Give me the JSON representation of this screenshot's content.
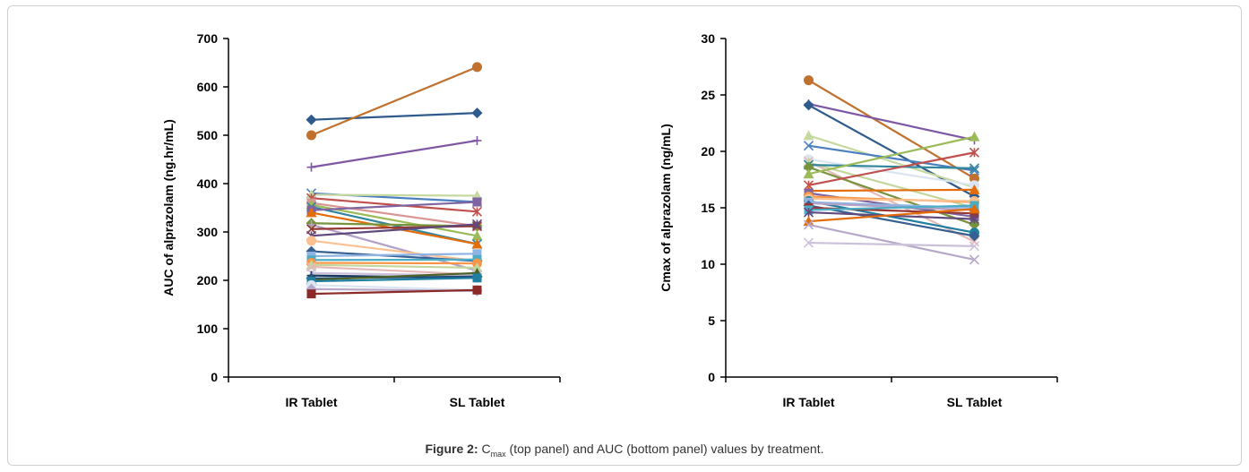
{
  "caption": {
    "label": "Figure 2:",
    "c_letter": "C",
    "c_sub": "max",
    "rest": " (top panel) and AUC (bottom panel) values by treatment."
  },
  "chart_data": [
    {
      "type": "line",
      "ylabel": "AUC  of alprazolam  (ng.hr/mL)",
      "categories": [
        "IR Tablet",
        "SL Tablet"
      ],
      "ylim": [
        0,
        700
      ],
      "yticks": [
        0,
        100,
        200,
        300,
        400,
        500,
        600,
        700
      ],
      "series": [
        {
          "values": [
            532,
            546
          ],
          "color": "#2e5a8c",
          "marker": "diamond"
        },
        {
          "values": [
            500,
            641
          ],
          "color": "#c0712e",
          "marker": "circle"
        },
        {
          "values": [
            434,
            489
          ],
          "color": "#7e57a3",
          "marker": "plus"
        },
        {
          "values": [
            380,
            362
          ],
          "color": "#4a7fc0",
          "marker": "x"
        },
        {
          "values": [
            377,
            375
          ],
          "color": "#c6d9a0",
          "marker": "triangle"
        },
        {
          "values": [
            370,
            342
          ],
          "color": "#c0504d",
          "marker": "star"
        },
        {
          "values": [
            360,
            312
          ],
          "color": "#d99694",
          "marker": "square"
        },
        {
          "values": [
            356,
            292
          ],
          "color": "#9bbb59",
          "marker": "triangle"
        },
        {
          "values": [
            352,
            275
          ],
          "color": "#31859c",
          "marker": "x"
        },
        {
          "values": [
            345,
            362
          ],
          "color": "#8064a2",
          "marker": "square"
        },
        {
          "values": [
            340,
            275
          ],
          "color": "#e46c0a",
          "marker": "triangle"
        },
        {
          "values": [
            318,
            312
          ],
          "color": "#77933c",
          "marker": "diamond"
        },
        {
          "values": [
            315,
            220
          ],
          "color": "#b3a2c7",
          "marker": "plus"
        },
        {
          "values": [
            306,
            312
          ],
          "color": "#953735",
          "marker": "x"
        },
        {
          "values": [
            292,
            316
          ],
          "color": "#604a7b",
          "marker": "star"
        },
        {
          "values": [
            282,
            240
          ],
          "color": "#fac090",
          "marker": "circle"
        },
        {
          "values": [
            260,
            240
          ],
          "color": "#376092",
          "marker": "diamond"
        },
        {
          "values": [
            250,
            255
          ],
          "color": "#8eb4e3",
          "marker": "square"
        },
        {
          "values": [
            242,
            243
          ],
          "color": "#4bacc6",
          "marker": "square"
        },
        {
          "values": [
            236,
            235
          ],
          "color": "#f79646",
          "marker": "circle"
        },
        {
          "values": [
            232,
            226
          ],
          "color": "#c3d69b",
          "marker": "triangle"
        },
        {
          "values": [
            228,
            212
          ],
          "color": "#e6b9b8",
          "marker": "x"
        },
        {
          "values": [
            215,
            210
          ],
          "color": "#ccc1da",
          "marker": "x"
        },
        {
          "values": [
            210,
            205
          ],
          "color": "#17375e",
          "marker": "plus"
        },
        {
          "values": [
            204,
            208
          ],
          "color": "#1f497d",
          "marker": "diamond"
        },
        {
          "values": [
            201,
            215
          ],
          "color": "#4f6228",
          "marker": "triangle"
        },
        {
          "values": [
            198,
            205
          ],
          "color": "#1f7fa0",
          "marker": "square"
        },
        {
          "values": [
            190,
            180
          ],
          "color": "#dbe5f1",
          "marker": "circle"
        },
        {
          "values": [
            182,
            178
          ],
          "color": "#b7a8c9",
          "marker": "diamond"
        },
        {
          "values": [
            172,
            180
          ],
          "color": "#8b2a27",
          "marker": "square"
        }
      ]
    },
    {
      "type": "line",
      "ylabel": "Cmax  of alprazolam  (ng/mL)",
      "categories": [
        "IR Tablet",
        "SL Tablet"
      ],
      "ylim": [
        0,
        30
      ],
      "yticks": [
        0,
        5,
        10,
        15,
        20,
        25,
        30
      ],
      "series": [
        {
          "values": [
            26.3,
            17.6
          ],
          "color": "#c0712e",
          "marker": "circle"
        },
        {
          "values": [
            24.2,
            21.0
          ],
          "color": "#7e57a3",
          "marker": "plus"
        },
        {
          "values": [
            24.1,
            16.0
          ],
          "color": "#2e5a8c",
          "marker": "diamond"
        },
        {
          "values": [
            21.4,
            16.8
          ],
          "color": "#c6d9a0",
          "marker": "triangle"
        },
        {
          "values": [
            20.5,
            18.3
          ],
          "color": "#4a7fc0",
          "marker": "x"
        },
        {
          "values": [
            19.3,
            17.0
          ],
          "color": "#dbe5f1",
          "marker": "circle"
        },
        {
          "values": [
            19.1,
            12.0
          ],
          "color": "#e6b9b8",
          "marker": "x"
        },
        {
          "values": [
            19.0,
            15.0
          ],
          "color": "#c3d69b",
          "marker": "triangle"
        },
        {
          "values": [
            18.8,
            18.5
          ],
          "color": "#31859c",
          "marker": "x"
        },
        {
          "values": [
            18.6,
            13.5
          ],
          "color": "#77933c",
          "marker": "diamond"
        },
        {
          "values": [
            18.0,
            21.3
          ],
          "color": "#9bbb59",
          "marker": "triangle"
        },
        {
          "values": [
            17.0,
            19.9
          ],
          "color": "#c0504d",
          "marker": "star"
        },
        {
          "values": [
            16.5,
            16.6
          ],
          "color": "#e46c0a",
          "marker": "triangle"
        },
        {
          "values": [
            16.3,
            14.2
          ],
          "color": "#8064a2",
          "marker": "square"
        },
        {
          "values": [
            16.0,
            15.5
          ],
          "color": "#f79646",
          "marker": "circle"
        },
        {
          "values": [
            15.8,
            15.6
          ],
          "color": "#fac090",
          "marker": "circle"
        },
        {
          "values": [
            15.6,
            12.8
          ],
          "color": "#1f7fa0",
          "marker": "circle"
        },
        {
          "values": [
            15.5,
            15.0
          ],
          "color": "#8eb4e3",
          "marker": "square"
        },
        {
          "values": [
            15.4,
            14.8
          ],
          "color": "#b3a2c7",
          "marker": "plus"
        },
        {
          "values": [
            15.2,
            12.5
          ],
          "color": "#376092",
          "marker": "diamond"
        },
        {
          "values": [
            15.0,
            14.5
          ],
          "color": "#953735",
          "marker": "square"
        },
        {
          "values": [
            14.8,
            15.2
          ],
          "color": "#4bacc6",
          "marker": "square"
        },
        {
          "values": [
            14.6,
            14.0
          ],
          "color": "#604a7b",
          "marker": "star"
        },
        {
          "values": [
            13.8,
            14.9
          ],
          "color": "#e36c09",
          "marker": "triangle"
        },
        {
          "values": [
            13.5,
            10.4
          ],
          "color": "#b7a8c9",
          "marker": "x"
        },
        {
          "values": [
            11.9,
            11.6
          ],
          "color": "#ccc1da",
          "marker": "x"
        }
      ]
    }
  ]
}
